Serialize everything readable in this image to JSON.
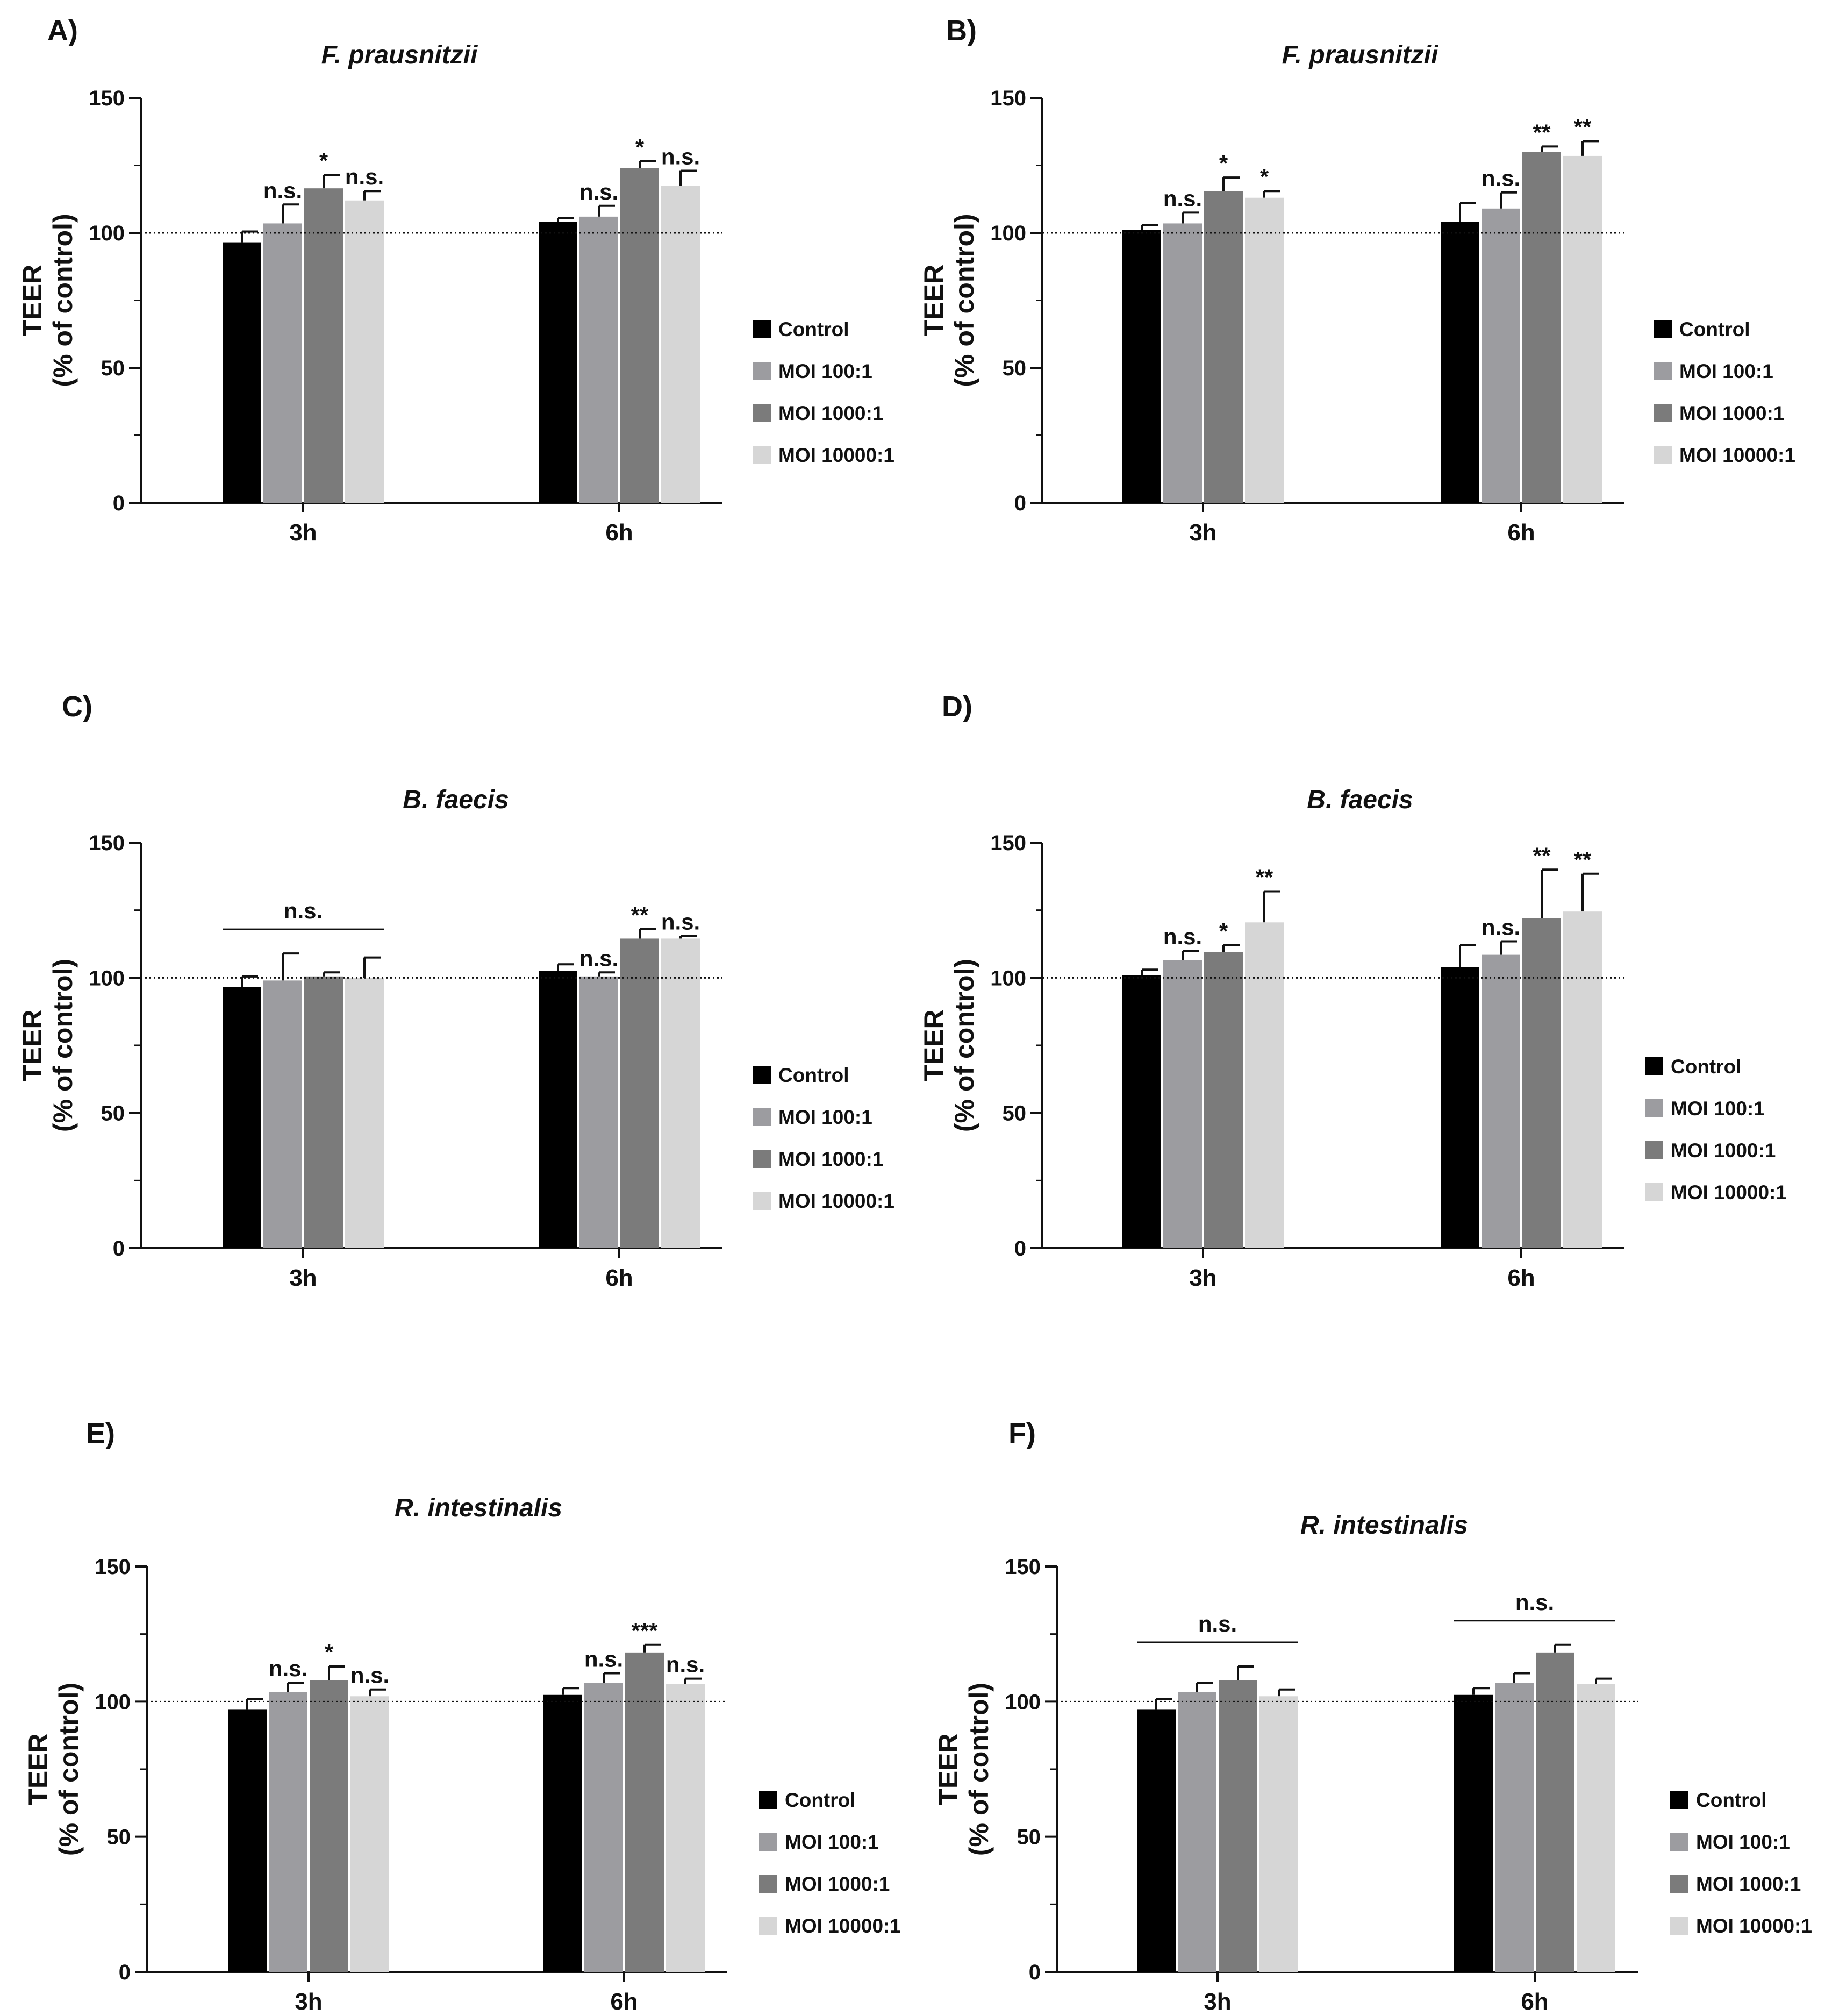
{
  "figure": {
    "ylabel_line1": "TEER",
    "ylabel_line2": "(% of control)",
    "yticks": [
      0,
      50,
      100,
      150
    ],
    "ylim": [
      0,
      150
    ],
    "reference_value": 100,
    "series_names": [
      "Control",
      "MOI 100:1",
      "MOI 1000:1",
      "MOI 10000:1"
    ],
    "colors": {
      "Control": "#000000",
      "MOI 100:1": "#9c9ca0",
      "MOI 1000:1": "#7b7b7b",
      "MOI 10000:1": "#d6d6d6",
      "axis": "#111111"
    }
  },
  "chart_data": [
    {
      "panel": "A)",
      "type": "bar",
      "title": "F. prausnitzii",
      "categories": [
        "3h",
        "6h"
      ],
      "ylabel": "TEER (% of control)",
      "ylim": [
        0,
        150
      ],
      "reference_line": 100,
      "series": [
        {
          "name": "Control",
          "values": [
            96.5,
            104
          ],
          "errors": [
            4,
            1.5
          ]
        },
        {
          "name": "MOI 100:1",
          "values": [
            103.5,
            106
          ],
          "errors": [
            7,
            4
          ]
        },
        {
          "name": "MOI 1000:1",
          "values": [
            116.5,
            124
          ],
          "errors": [
            5,
            2.5
          ]
        },
        {
          "name": "MOI 10000:1",
          "values": [
            112,
            117.5
          ],
          "errors": [
            3.5,
            5.5
          ]
        }
      ],
      "annotations": [
        {
          "category": "3h",
          "series": "MOI 100:1",
          "text": "n.s."
        },
        {
          "category": "3h",
          "series": "MOI 1000:1",
          "text": "*"
        },
        {
          "category": "3h",
          "series": "MOI 10000:1",
          "text": "n.s."
        },
        {
          "category": "6h",
          "series": "MOI 100:1",
          "text": "n.s."
        },
        {
          "category": "6h",
          "series": "MOI 1000:1",
          "text": "*"
        },
        {
          "category": "6h",
          "series": "MOI 10000:1",
          "text": "n.s."
        }
      ]
    },
    {
      "panel": "B)",
      "type": "bar",
      "title": "F. prausnitzii",
      "categories": [
        "3h",
        "6h"
      ],
      "ylabel": "TEER (% of control)",
      "ylim": [
        0,
        150
      ],
      "reference_line": 100,
      "series": [
        {
          "name": "Control",
          "values": [
            101,
            104
          ],
          "errors": [
            2,
            7
          ]
        },
        {
          "name": "MOI 100:1",
          "values": [
            103.5,
            109
          ],
          "errors": [
            4,
            6
          ]
        },
        {
          "name": "MOI 1000:1",
          "values": [
            115.5,
            130
          ],
          "errors": [
            5,
            2
          ]
        },
        {
          "name": "MOI 10000:1",
          "values": [
            113,
            128.5
          ],
          "errors": [
            2.5,
            5.5
          ]
        }
      ],
      "annotations": [
        {
          "category": "3h",
          "series": "MOI 100:1",
          "text": "n.s."
        },
        {
          "category": "3h",
          "series": "MOI 1000:1",
          "text": "*"
        },
        {
          "category": "3h",
          "series": "MOI 10000:1",
          "text": "*"
        },
        {
          "category": "6h",
          "series": "MOI 100:1",
          "text": "n.s."
        },
        {
          "category": "6h",
          "series": "MOI 1000:1",
          "text": "**"
        },
        {
          "category": "6h",
          "series": "MOI 10000:1",
          "text": "**"
        }
      ]
    },
    {
      "panel": "C)",
      "type": "bar",
      "title": "B. faecis",
      "categories": [
        "3h",
        "6h"
      ],
      "ylabel": "TEER (% of control)",
      "ylim": [
        0,
        150
      ],
      "reference_line": 100,
      "series": [
        {
          "name": "Control",
          "values": [
            96.5,
            102.5
          ],
          "errors": [
            4,
            2.5
          ]
        },
        {
          "name": "MOI 100:1",
          "values": [
            99,
            100.5
          ],
          "errors": [
            10,
            1.5
          ]
        },
        {
          "name": "MOI 1000:1",
          "values": [
            100.5,
            114.5
          ],
          "errors": [
            1.5,
            3.5
          ]
        },
        {
          "name": "MOI 10000:1",
          "values": [
            100,
            114.5
          ],
          "errors": [
            7.5,
            1
          ]
        }
      ],
      "annotations": [
        {
          "category": "3h",
          "span": "all",
          "text": "n.s."
        },
        {
          "category": "6h",
          "series": "MOI 100:1",
          "text": "n.s."
        },
        {
          "category": "6h",
          "series": "MOI 1000:1",
          "text": "**"
        },
        {
          "category": "6h",
          "series": "MOI 10000:1",
          "text": "n.s."
        }
      ]
    },
    {
      "panel": "D)",
      "type": "bar",
      "title": "B. faecis",
      "categories": [
        "3h",
        "6h"
      ],
      "ylabel": "TEER (% of control)",
      "ylim": [
        0,
        150
      ],
      "reference_line": 100,
      "series": [
        {
          "name": "Control",
          "values": [
            101,
            104
          ],
          "errors": [
            2,
            8
          ]
        },
        {
          "name": "MOI 100:1",
          "values": [
            106.5,
            108.5
          ],
          "errors": [
            3.5,
            5
          ]
        },
        {
          "name": "MOI 1000:1",
          "values": [
            109.5,
            122
          ],
          "errors": [
            2.5,
            18
          ]
        },
        {
          "name": "MOI 10000:1",
          "values": [
            120.5,
            124.5
          ],
          "errors": [
            11.5,
            14
          ]
        }
      ],
      "annotations": [
        {
          "category": "3h",
          "series": "MOI 100:1",
          "text": "n.s."
        },
        {
          "category": "3h",
          "series": "MOI 1000:1",
          "text": "*"
        },
        {
          "category": "3h",
          "series": "MOI 10000:1",
          "text": "**"
        },
        {
          "category": "6h",
          "series": "MOI 100:1",
          "text": "n.s."
        },
        {
          "category": "6h",
          "series": "MOI 1000:1",
          "text": "**"
        },
        {
          "category": "6h",
          "series": "MOI 10000:1",
          "text": "**"
        }
      ]
    },
    {
      "panel": "E)",
      "type": "bar",
      "title": "R. intestinalis",
      "categories": [
        "3h",
        "6h"
      ],
      "ylabel": "TEER (% of control)",
      "ylim": [
        0,
        150
      ],
      "reference_line": 100,
      "series": [
        {
          "name": "Control",
          "values": [
            97,
            102.5
          ],
          "errors": [
            4,
            2.5
          ]
        },
        {
          "name": "MOI 100:1",
          "values": [
            103.5,
            107
          ],
          "errors": [
            3.5,
            3.5
          ]
        },
        {
          "name": "MOI 1000:1",
          "values": [
            108,
            118
          ],
          "errors": [
            5,
            3
          ]
        },
        {
          "name": "MOI 10000:1",
          "values": [
            102,
            106.5
          ],
          "errors": [
            2.5,
            2
          ]
        }
      ],
      "annotations": [
        {
          "category": "3h",
          "series": "MOI 100:1",
          "text": "n.s."
        },
        {
          "category": "3h",
          "series": "MOI 1000:1",
          "text": "*"
        },
        {
          "category": "3h",
          "series": "MOI 10000:1",
          "text": "n.s."
        },
        {
          "category": "6h",
          "series": "MOI 100:1",
          "text": "n.s."
        },
        {
          "category": "6h",
          "series": "MOI 1000:1",
          "text": "***"
        },
        {
          "category": "6h",
          "series": "MOI 10000:1",
          "text": "n.s."
        }
      ]
    },
    {
      "panel": "F)",
      "type": "bar",
      "title": "R. intestinalis",
      "categories": [
        "3h",
        "6h"
      ],
      "ylabel": "TEER (% of control)",
      "ylim": [
        0,
        150
      ],
      "reference_line": 100,
      "series": [
        {
          "name": "Control",
          "values": [
            97,
            102.5
          ],
          "errors": [
            4,
            2.5
          ]
        },
        {
          "name": "MOI 100:1",
          "values": [
            103.5,
            107
          ],
          "errors": [
            3.5,
            3.5
          ]
        },
        {
          "name": "MOI 1000:1",
          "values": [
            108,
            118
          ],
          "errors": [
            5,
            3
          ]
        },
        {
          "name": "MOI 10000:1",
          "values": [
            102,
            106.5
          ],
          "errors": [
            2.5,
            2
          ]
        }
      ],
      "annotations": [
        {
          "category": "3h",
          "span": "all",
          "text": "n.s."
        },
        {
          "category": "6h",
          "span": "all",
          "text": "n.s."
        }
      ]
    }
  ]
}
